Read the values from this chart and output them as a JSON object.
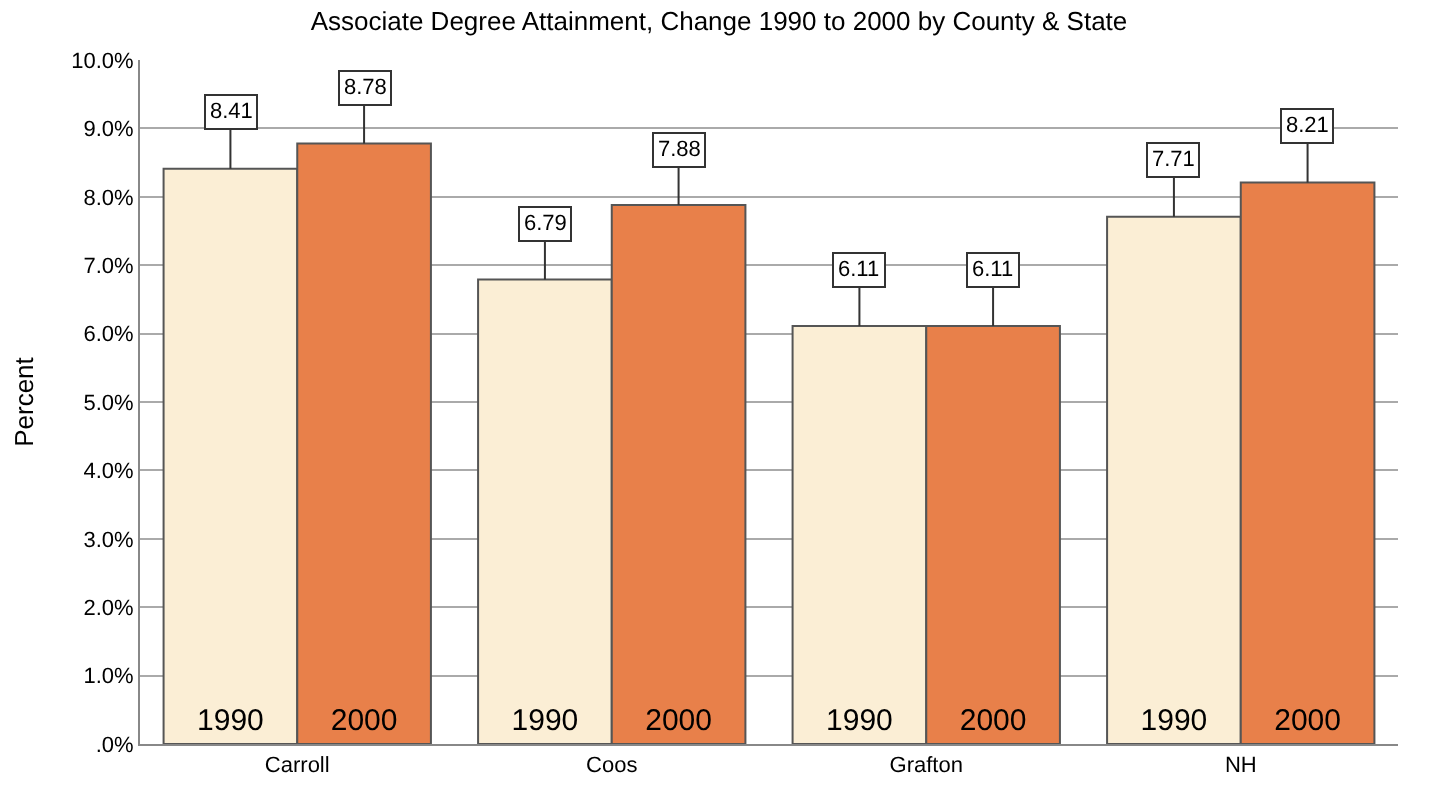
{
  "chart_data": {
    "type": "bar",
    "title": "Associate Degree Attainment, Change 1990 to 2000 by County & State",
    "ylabel": "Percent",
    "categories": [
      "Carroll",
      "Coos",
      "Grafton",
      "NH"
    ],
    "series": [
      {
        "name": "1990",
        "color": "#fbeed5",
        "values": [
          8.41,
          6.79,
          6.11,
          7.71
        ]
      },
      {
        "name": "2000",
        "color": "#e8804a",
        "values": [
          8.78,
          7.88,
          6.11,
          8.21
        ]
      }
    ],
    "ylim": [
      0,
      10
    ],
    "yticks": [
      {
        "value": 0,
        "label": ".0%"
      },
      {
        "value": 1,
        "label": "1.0%"
      },
      {
        "value": 2,
        "label": "2.0%"
      },
      {
        "value": 3,
        "label": "3.0%"
      },
      {
        "value": 4,
        "label": "4.0%"
      },
      {
        "value": 5,
        "label": "5.0%"
      },
      {
        "value": 6,
        "label": "6.0%"
      },
      {
        "value": 7,
        "label": "7.0%"
      },
      {
        "value": 8,
        "label": "8.0%"
      },
      {
        "value": 9,
        "label": "9.0%"
      },
      {
        "value": 10,
        "label": "10.0%"
      }
    ],
    "grid": "y",
    "legend": false,
    "data_labels": true
  }
}
